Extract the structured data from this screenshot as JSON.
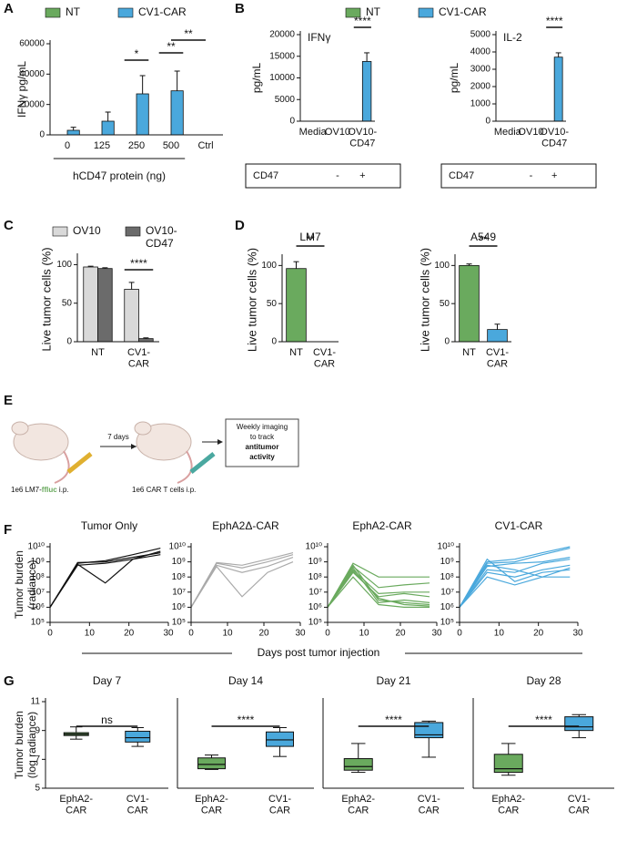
{
  "panel_labels": [
    "A",
    "B",
    "C",
    "D",
    "E",
    "F",
    "G"
  ],
  "schematic": {
    "interval": "7 days",
    "box": [
      "Weekly imaging",
      "to track",
      "antitumor",
      "activity"
    ],
    "injection_1": [
      "1e6 LM7-",
      "ffluc",
      " i.p."
    ],
    "injection_2": "1e6 CAR T cells i.p."
  },
  "chart_data": [
    {
      "type": "bar",
      "categories": [
        "0",
        "125",
        "250",
        "500",
        "Ctrl"
      ],
      "series": [
        {
          "name": "NT",
          "color": "#6aaa5e",
          "values": [
            0,
            0,
            0,
            0,
            0
          ]
        },
        {
          "name": "CV1-CAR",
          "color": "#4aa8dc",
          "values": [
            3000,
            9000,
            27000,
            29000,
            0
          ],
          "errors": [
            2000,
            6000,
            12000,
            13000,
            0
          ]
        }
      ],
      "ylabel": "IFNγ pg/mL",
      "xlabel": "hCD47 protein (ng)",
      "ylim": [
        0,
        60000
      ],
      "yticks": [
        0,
        20000,
        40000,
        60000
      ],
      "annotations": [
        "*",
        "**",
        "**"
      ],
      "legend": "top"
    },
    {
      "type": "bar",
      "title": "IFNγ",
      "categories": [
        "Media",
        "OV10",
        "OV10-\nCD47"
      ],
      "series": [
        {
          "name": "NT",
          "color": "#6aaa5e",
          "values": [
            0,
            0,
            0
          ]
        },
        {
          "name": "CV1-CAR",
          "color": "#4aa8dc",
          "values": [
            0,
            0,
            13800
          ],
          "errors": [
            0,
            0,
            2000
          ]
        }
      ],
      "ylabel": "pg/mL",
      "ylim": [
        0,
        20000
      ],
      "yticks": [
        0,
        5000,
        10000,
        15000,
        20000
      ],
      "annotations": [
        "****"
      ],
      "legend": "top",
      "table_row": [
        "CD47",
        "-",
        "+"
      ]
    },
    {
      "type": "bar",
      "title": "IL-2",
      "categories": [
        "Media",
        "OV10",
        "OV10-\nCD47"
      ],
      "series": [
        {
          "color": "#6aaa5e",
          "values": [
            0,
            0,
            0
          ]
        },
        {
          "color": "#4aa8dc",
          "values": [
            0,
            0,
            3700
          ],
          "errors": [
            0,
            0,
            250
          ]
        }
      ],
      "ylabel": "pg/mL",
      "ylim": [
        0,
        5000
      ],
      "yticks": [
        0,
        1000,
        2000,
        3000,
        4000,
        5000
      ],
      "annotations": [
        "****"
      ],
      "table_row": [
        "CD47",
        "-",
        "+"
      ]
    },
    {
      "type": "bar",
      "categories": [
        "NT",
        "CV1-\nCAR"
      ],
      "series": [
        {
          "name": "OV10",
          "color": "#d9d9d9",
          "values": [
            97,
            68
          ],
          "errors": [
            1,
            9
          ]
        },
        {
          "name": "OV10-\nCD47",
          "color": "#6b6b6b",
          "values": [
            95,
            4
          ],
          "errors": [
            1,
            1
          ]
        }
      ],
      "ylabel": "Live tumor cells (%)",
      "ylim": [
        0,
        110
      ],
      "yticks": [
        0,
        50,
        100
      ],
      "annotations": [
        "****"
      ],
      "legend": "top"
    },
    {
      "type": "bar",
      "title": "LM7",
      "categories": [
        "NT",
        "CV1-\nCAR"
      ],
      "values": [
        96,
        0
      ],
      "errors": [
        9,
        0
      ],
      "colors": [
        "#6aaa5e",
        "#4aa8dc"
      ],
      "ylabel": "Live tumor cells (%)",
      "ylim": [
        0,
        110
      ],
      "yticks": [
        0,
        50,
        100
      ],
      "annotations": [
        "**"
      ]
    },
    {
      "type": "bar",
      "title": "A549",
      "categories": [
        "NT",
        "CV1-\nCAR"
      ],
      "values": [
        100,
        16
      ],
      "errors": [
        2,
        7
      ],
      "colors": [
        "#6aaa5e",
        "#4aa8dc"
      ],
      "ylabel": "Live tumor cells (%)",
      "ylim": [
        0,
        110
      ],
      "yticks": [
        0,
        50,
        100
      ],
      "annotations": [
        "**"
      ]
    },
    {
      "type": "line",
      "title": "Tumor Only",
      "color": "#111111",
      "log_scale": true,
      "ylabel": "Tumor burden\n(radiance)",
      "xlabel": "Days post tumor injection",
      "x": [
        0,
        7,
        14,
        21,
        28
      ],
      "xlim": [
        0,
        30
      ],
      "xticks": [
        0,
        10,
        20,
        30
      ],
      "ylim": [
        100000,
        10000000000
      ],
      "yticks": [
        {
          "value": 100000,
          "label": "10⁵"
        },
        {
          "value": 1000000,
          "label": "10⁶"
        },
        {
          "value": 10000000,
          "label": "10⁷"
        },
        {
          "value": 100000000,
          "label": "10⁸"
        },
        {
          "value": 1000000000,
          "label": "10⁹"
        },
        {
          "value": 10000000000,
          "label": "10¹⁰"
        }
      ],
      "series": [
        {
          "values": [
            1000000.0,
            800000000.0,
            1200000000.0,
            3000000000.0,
            8000000000.0
          ]
        },
        {
          "values": [
            1000000.0,
            700000000.0,
            40000000.0,
            1500000000.0,
            5000000000.0
          ]
        },
        {
          "values": [
            1000000.0,
            900000000.0,
            1000000000.0,
            2000000000.0,
            4000000000.0
          ]
        },
        {
          "values": [
            1000000.0,
            600000000.0,
            800000000.0,
            1500000000.0,
            3000000000.0
          ]
        }
      ]
    },
    {
      "type": "line",
      "title": "EphA2Δ-CAR",
      "color": "#aaaaaa",
      "log_scale": true,
      "x": [
        0,
        7,
        14,
        21,
        28
      ],
      "xlim": [
        0,
        30
      ],
      "xticks": [
        0,
        10,
        20,
        30
      ],
      "ylim": [
        100000,
        10000000000
      ],
      "yticks": [
        {
          "value": 100000,
          "label": "10⁵"
        },
        {
          "value": 1000000,
          "label": "10⁶"
        },
        {
          "value": 10000000,
          "label": "10⁷"
        },
        {
          "value": 100000000,
          "label": "10⁸"
        },
        {
          "value": 1000000000,
          "label": "10⁹"
        },
        {
          "value": 10000000000,
          "label": "10¹⁰"
        }
      ],
      "series": [
        {
          "values": [
            1000000.0,
            800000000.0,
            400000000.0,
            1000000000.0,
            3000000000.0
          ]
        },
        {
          "values": [
            1000000.0,
            500000000.0,
            5000000.0,
            200000000.0,
            1000000000.0
          ]
        },
        {
          "values": [
            1000000.0,
            600000000.0,
            200000000.0,
            500000000.0,
            2000000000.0
          ]
        },
        {
          "values": [
            1000000.0,
            900000000.0,
            600000000.0,
            1500000000.0,
            4000000000.0
          ]
        }
      ]
    },
    {
      "type": "line",
      "title": "EphA2-CAR",
      "color": "#6aaa5e",
      "log_scale": true,
      "x": [
        0,
        7,
        14,
        21,
        28
      ],
      "xlim": [
        0,
        30
      ],
      "xticks": [
        0,
        10,
        20,
        30
      ],
      "ylim": [
        100000,
        10000000000
      ],
      "yticks": [
        {
          "value": 100000,
          "label": "10⁵"
        },
        {
          "value": 1000000,
          "label": "10⁶"
        },
        {
          "value": 10000000,
          "label": "10⁷"
        },
        {
          "value": 100000000,
          "label": "10⁸"
        },
        {
          "value": 1000000000,
          "label": "10⁹"
        },
        {
          "value": 10000000000,
          "label": "10¹⁰"
        }
      ],
      "series": [
        {
          "values": [
            1000000.0,
            800000000.0,
            100000000.0,
            100000000.0,
            100000000.0
          ]
        },
        {
          "values": [
            1000000.0,
            500000000.0,
            20000000.0,
            30000000.0,
            40000000.0
          ]
        },
        {
          "values": [
            1000000.0,
            300000000.0,
            8000000.0,
            10000000.0,
            10000000.0
          ]
        },
        {
          "values": [
            1000000.0,
            200000000.0,
            5000000.0,
            8000000.0,
            5000000.0
          ]
        },
        {
          "values": [
            1000000.0,
            600000000.0,
            3000000.0,
            2000000.0,
            1500000.0
          ]
        },
        {
          "values": [
            1000000.0,
            400000000.0,
            2000000.0,
            3000000.0,
            2000000.0
          ]
        },
        {
          "values": [
            1000000.0,
            100000000.0,
            1500000.0,
            1000000.0,
            1000000.0
          ]
        },
        {
          "values": [
            1000000.0,
            250000000.0,
            4000000.0,
            1500000.0,
            1200000.0
          ]
        }
      ]
    },
    {
      "type": "line",
      "title": "CV1-CAR",
      "color": "#4aa8dc",
      "log_scale": true,
      "x": [
        0,
        7,
        14,
        21,
        28
      ],
      "xlim": [
        0,
        30
      ],
      "xticks": [
        0,
        10,
        20,
        30
      ],
      "ylim": [
        100000,
        10000000000
      ],
      "yticks": [
        {
          "value": 100000,
          "label": "10⁵"
        },
        {
          "value": 1000000,
          "label": "10⁶"
        },
        {
          "value": 10000000,
          "label": "10⁷"
        },
        {
          "value": 100000000,
          "label": "10⁸"
        },
        {
          "value": 1000000000,
          "label": "10⁹"
        },
        {
          "value": 10000000000,
          "label": "10¹⁰"
        }
      ],
      "series": [
        {
          "values": [
            1000000.0,
            1000000000.0,
            1500000000.0,
            4000000000.0,
            10000000000.0
          ]
        },
        {
          "values": [
            1000000.0,
            800000000.0,
            1000000000.0,
            3000000000.0,
            8000000000.0
          ]
        },
        {
          "values": [
            1000000.0,
            500000000.0,
            800000000.0,
            1000000000.0,
            2000000000.0
          ]
        },
        {
          "values": [
            1000000.0,
            300000000.0,
            200000000.0,
            800000000.0,
            1500000000.0
          ]
        },
        {
          "values": [
            1000000.0,
            200000000.0,
            100000000.0,
            300000000.0,
            600000000.0
          ]
        },
        {
          "values": [
            1000000.0,
            100000000.0,
            30000000.0,
            100000000.0,
            400000000.0
          ]
        },
        {
          "values": [
            1000000.0,
            1500000000.0,
            50000000.0,
            200000000.0,
            300000000.0
          ]
        },
        {
          "values": [
            1000000.0,
            600000000.0,
            300000000.0,
            100000000.0,
            100000000.0
          ]
        }
      ]
    },
    {
      "type": "box",
      "title": "Day 7",
      "ylabel": "Tumor burden\n(log radiance)",
      "categories": [
        "EphA2-\nCAR",
        "CV1-\nCAR"
      ],
      "colors": [
        "#6aaa5e",
        "#4aa8dc"
      ],
      "ylim": [
        5,
        11
      ],
      "yticks": [
        5,
        7,
        9,
        11
      ],
      "annotations": [
        "ns"
      ],
      "boxes": [
        {
          "min": 8.4,
          "q1": 8.65,
          "median": 8.75,
          "q3": 8.85,
          "max": 9.25
        },
        {
          "min": 7.9,
          "q1": 8.2,
          "median": 8.5,
          "q3": 8.95,
          "max": 9.2
        }
      ]
    },
    {
      "type": "box",
      "title": "Day 14",
      "categories": [
        "EphA2-\nCAR",
        "CV1-\nCAR"
      ],
      "colors": [
        "#6aaa5e",
        "#4aa8dc"
      ],
      "ylim": [
        5,
        11
      ],
      "annotations": [
        "****"
      ],
      "boxes": [
        {
          "min": 6.3,
          "q1": 6.35,
          "median": 6.65,
          "q3": 7.1,
          "max": 7.3
        },
        {
          "min": 7.2,
          "q1": 7.9,
          "median": 8.35,
          "q3": 8.9,
          "max": 9.2
        }
      ]
    },
    {
      "type": "box",
      "title": "Day 21",
      "categories": [
        "EphA2-\nCAR",
        "CV1-\nCAR"
      ],
      "colors": [
        "#6aaa5e",
        "#4aa8dc"
      ],
      "ylim": [
        5,
        11
      ],
      "annotations": [
        "****"
      ],
      "boxes": [
        {
          "min": 6.1,
          "q1": 6.25,
          "median": 6.5,
          "q3": 7.05,
          "max": 8.1
        },
        {
          "min": 7.15,
          "q1": 8.5,
          "median": 8.7,
          "q3": 9.55,
          "max": 9.65
        }
      ]
    },
    {
      "type": "box",
      "title": "Day 28",
      "categories": [
        "EphA2-\nCAR",
        "CV1-\nCAR"
      ],
      "colors": [
        "#6aaa5e",
        "#4aa8dc"
      ],
      "ylim": [
        5,
        11
      ],
      "annotations": [
        "****"
      ],
      "boxes": [
        {
          "min": 5.9,
          "q1": 6.1,
          "median": 6.35,
          "q3": 7.35,
          "max": 8.1
        },
        {
          "min": 8.5,
          "q1": 9.0,
          "median": 9.25,
          "q3": 9.95,
          "max": 10.1
        }
      ]
    }
  ]
}
